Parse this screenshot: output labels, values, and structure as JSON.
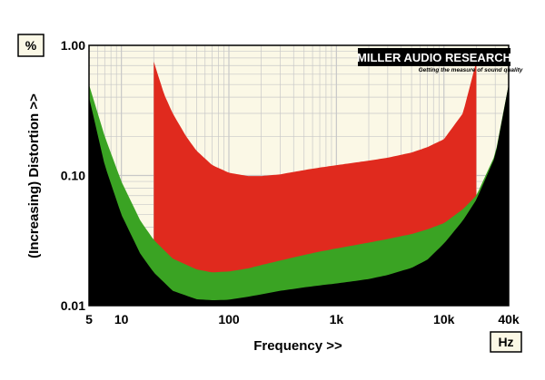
{
  "chart_data": {
    "type": "area",
    "title": "",
    "xlabel": "Frequency >>",
    "ylabel": "(Increasing) Distortion >>",
    "x_unit": "Hz",
    "y_unit": "%",
    "x_scale": "log",
    "y_scale": "log",
    "xlim": [
      5,
      40000
    ],
    "ylim": [
      0.01,
      1.0
    ],
    "x_ticks": [
      {
        "value": 5,
        "label": "5"
      },
      {
        "value": 10,
        "label": "10"
      },
      {
        "value": 100,
        "label": "100"
      },
      {
        "value": 1000,
        "label": "1k"
      },
      {
        "value": 10000,
        "label": "10k"
      },
      {
        "value": 40000,
        "label": "40k"
      }
    ],
    "y_ticks": [
      {
        "value": 1.0,
        "label": "1.00"
      },
      {
        "value": 0.1,
        "label": "0.10"
      },
      {
        "value": 0.01,
        "label": "0.01"
      }
    ],
    "grid": true,
    "legend": "none",
    "colors": {
      "plot_background": "#fbf8e6",
      "grid": "#c8c8c8",
      "floor": "#000000",
      "green_band": "#3aa323",
      "red_band": "#e02a1e",
      "unit_box": "#fbf8e6"
    },
    "logo": {
      "main": "MILLER AUDIO RESEARCH",
      "tagline": "Getting the measure of sound quality"
    },
    "series": [
      {
        "role": "floor",
        "color": "#000000",
        "x": [
          5,
          7,
          10,
          15,
          20,
          30,
          50,
          70,
          100,
          150,
          200,
          300,
          500,
          700,
          1000,
          2000,
          3000,
          5000,
          7000,
          10000,
          15000,
          20000,
          30000,
          40000
        ],
        "y": [
          0.4,
          0.12,
          0.05,
          0.025,
          0.018,
          0.013,
          0.0112,
          0.011,
          0.0111,
          0.0117,
          0.0122,
          0.013,
          0.0138,
          0.0143,
          0.0148,
          0.016,
          0.0172,
          0.0195,
          0.0225,
          0.03,
          0.045,
          0.065,
          0.14,
          0.5
        ]
      },
      {
        "role": "green",
        "color": "#3aa323",
        "x": [
          5,
          7,
          10,
          15,
          20,
          30,
          50,
          70,
          100,
          150,
          200,
          300,
          500,
          700,
          1000,
          2000,
          3000,
          5000,
          7000,
          10000,
          15000,
          20000,
          30000,
          40000
        ],
        "y": [
          0.5,
          0.2,
          0.09,
          0.045,
          0.032,
          0.023,
          0.019,
          0.018,
          0.0183,
          0.0193,
          0.0205,
          0.0222,
          0.0245,
          0.026,
          0.0275,
          0.0305,
          0.0325,
          0.0355,
          0.0385,
          0.043,
          0.055,
          0.07,
          0.145,
          0.5
        ]
      },
      {
        "role": "red",
        "color": "#e02a1e",
        "x": [
          20,
          25,
          30,
          40,
          50,
          70,
          100,
          150,
          200,
          300,
          500,
          700,
          1000,
          2000,
          3000,
          5000,
          7000,
          10000,
          15000,
          20000
        ],
        "y": [
          0.75,
          0.42,
          0.3,
          0.2,
          0.155,
          0.12,
          0.105,
          0.099,
          0.099,
          0.102,
          0.11,
          0.115,
          0.12,
          0.13,
          0.137,
          0.15,
          0.165,
          0.19,
          0.3,
          0.75
        ]
      }
    ]
  }
}
